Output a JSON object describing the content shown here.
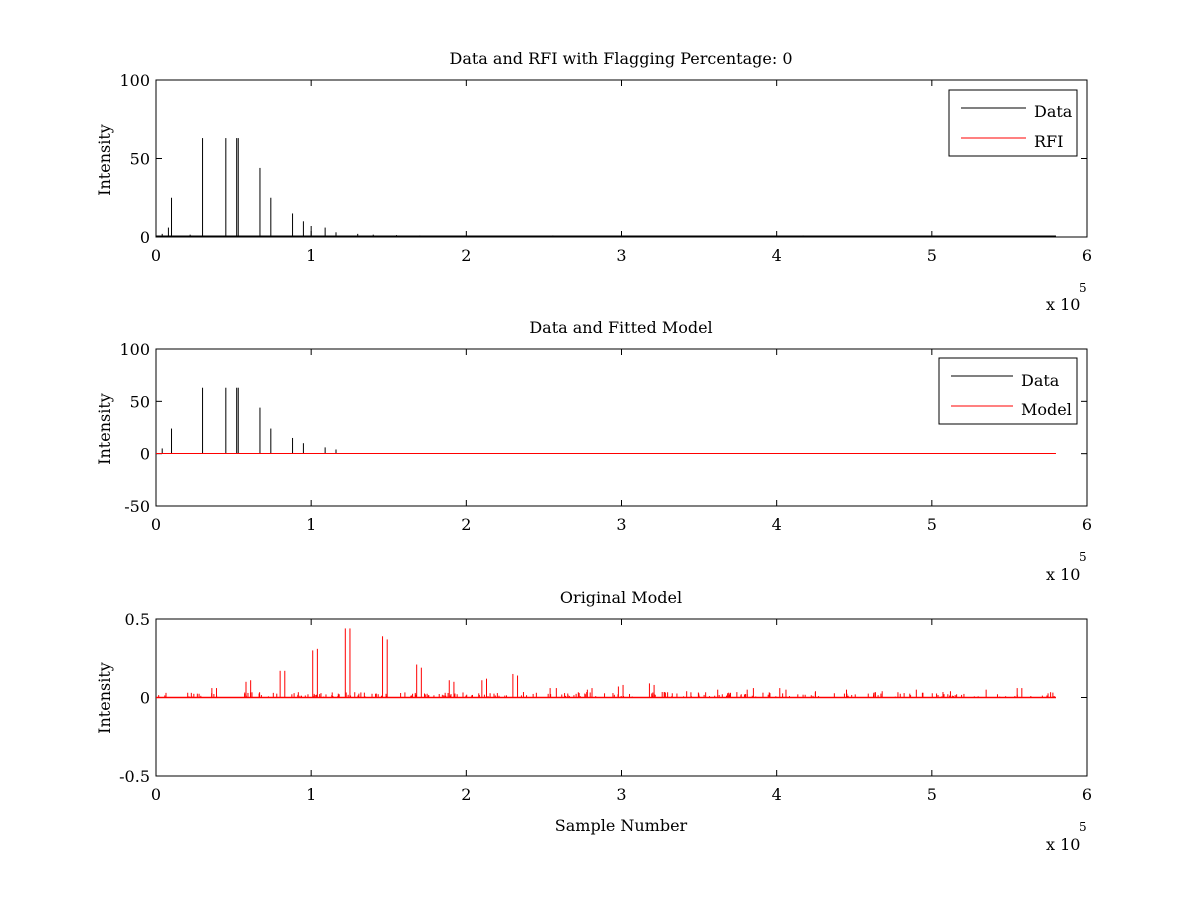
{
  "chart_data": [
    {
      "type": "line",
      "title": "Data and RFI with Flagging Percentage: 0",
      "xlabel": "",
      "ylabel": "Intensity",
      "xlim": [
        0,
        600000
      ],
      "ylim": [
        0,
        100
      ],
      "xticks": [
        "0",
        "1",
        "2",
        "3",
        "4",
        "5",
        "6"
      ],
      "yticks": [
        "0",
        "50",
        "100"
      ],
      "x_exponent": {
        "base": "x 10",
        "power": "5"
      },
      "legend": {
        "position": "top-right",
        "entries": [
          "Data",
          "RFI"
        ]
      },
      "series": [
        {
          "name": "Data",
          "color": "#000000",
          "x": [
            4000,
            8000,
            10000,
            22000,
            30000,
            45000,
            52000,
            53000,
            67000,
            74000,
            88000,
            95000,
            100000,
            109000,
            116000,
            130000,
            140000,
            155000,
            170000,
            183000,
            200000,
            220000
          ],
          "values": [
            2,
            6,
            25,
            1.5,
            63,
            63,
            63,
            63,
            44,
            25,
            15,
            10,
            7,
            6,
            3,
            2,
            1.5,
            1.2,
            1,
            0.8,
            0.6,
            0.5
          ]
        },
        {
          "name": "RFI",
          "color": "#ff0000",
          "x": [],
          "values": []
        }
      ]
    },
    {
      "type": "line",
      "title": "Data and Fitted Model",
      "xlabel": "",
      "ylabel": "Intensity",
      "xlim": [
        0,
        600000
      ],
      "ylim": [
        -50,
        100
      ],
      "xticks": [
        "0",
        "1",
        "2",
        "3",
        "4",
        "5",
        "6"
      ],
      "yticks": [
        "-50",
        "0",
        "50",
        "100"
      ],
      "x_exponent": {
        "base": "x 10",
        "power": "5"
      },
      "legend": {
        "position": "top-right",
        "entries": [
          "Data",
          "Model"
        ]
      },
      "series": [
        {
          "name": "Data",
          "color": "#000000",
          "x": [
            4000,
            10000,
            30000,
            45000,
            52000,
            53000,
            67000,
            74000,
            88000,
            95000,
            109000,
            116000
          ],
          "values": [
            5,
            24,
            63,
            63,
            63,
            63,
            44,
            24,
            15,
            10,
            6,
            4
          ]
        },
        {
          "name": "Model",
          "color": "#ff0000",
          "x": [
            0,
            580000
          ],
          "values": [
            0.2,
            0.2
          ]
        }
      ]
    },
    {
      "type": "line",
      "title": "Original Model",
      "xlabel": "Sample Number",
      "ylabel": "Intensity",
      "xlim": [
        0,
        600000
      ],
      "ylim": [
        -0.5,
        0.5
      ],
      "xticks": [
        "0",
        "1",
        "2",
        "3",
        "4",
        "5",
        "6"
      ],
      "yticks": [
        "-0.5",
        "0",
        "0.5"
      ],
      "x_exponent": {
        "base": "x 10",
        "power": "5"
      },
      "series": [
        {
          "name": "",
          "color": "#ff0000",
          "x": [
            36000,
            39000,
            58000,
            61000,
            80000,
            83000,
            101000,
            104000,
            122000,
            125000,
            146000,
            149000,
            168000,
            171000,
            189000,
            192000,
            210000,
            213000,
            230000,
            233000,
            254000,
            258000,
            278000,
            281000,
            298000,
            301000,
            318000,
            321000,
            342000,
            362000,
            381000,
            385000,
            402000,
            406000,
            425000,
            445000,
            468000,
            490000,
            512000,
            535000,
            555000,
            558000
          ],
          "values": [
            0.06,
            0.06,
            0.1,
            0.11,
            0.17,
            0.17,
            0.3,
            0.31,
            0.44,
            0.44,
            0.39,
            0.37,
            0.21,
            0.19,
            0.11,
            0.1,
            0.11,
            0.12,
            0.15,
            0.14,
            0.06,
            0.06,
            0.05,
            0.06,
            0.07,
            0.08,
            0.09,
            0.08,
            0.04,
            0.05,
            0.05,
            0.06,
            0.06,
            0.05,
            0.04,
            0.05,
            0.04,
            0.05,
            0.04,
            0.05,
            0.06,
            0.06
          ]
        }
      ]
    }
  ]
}
